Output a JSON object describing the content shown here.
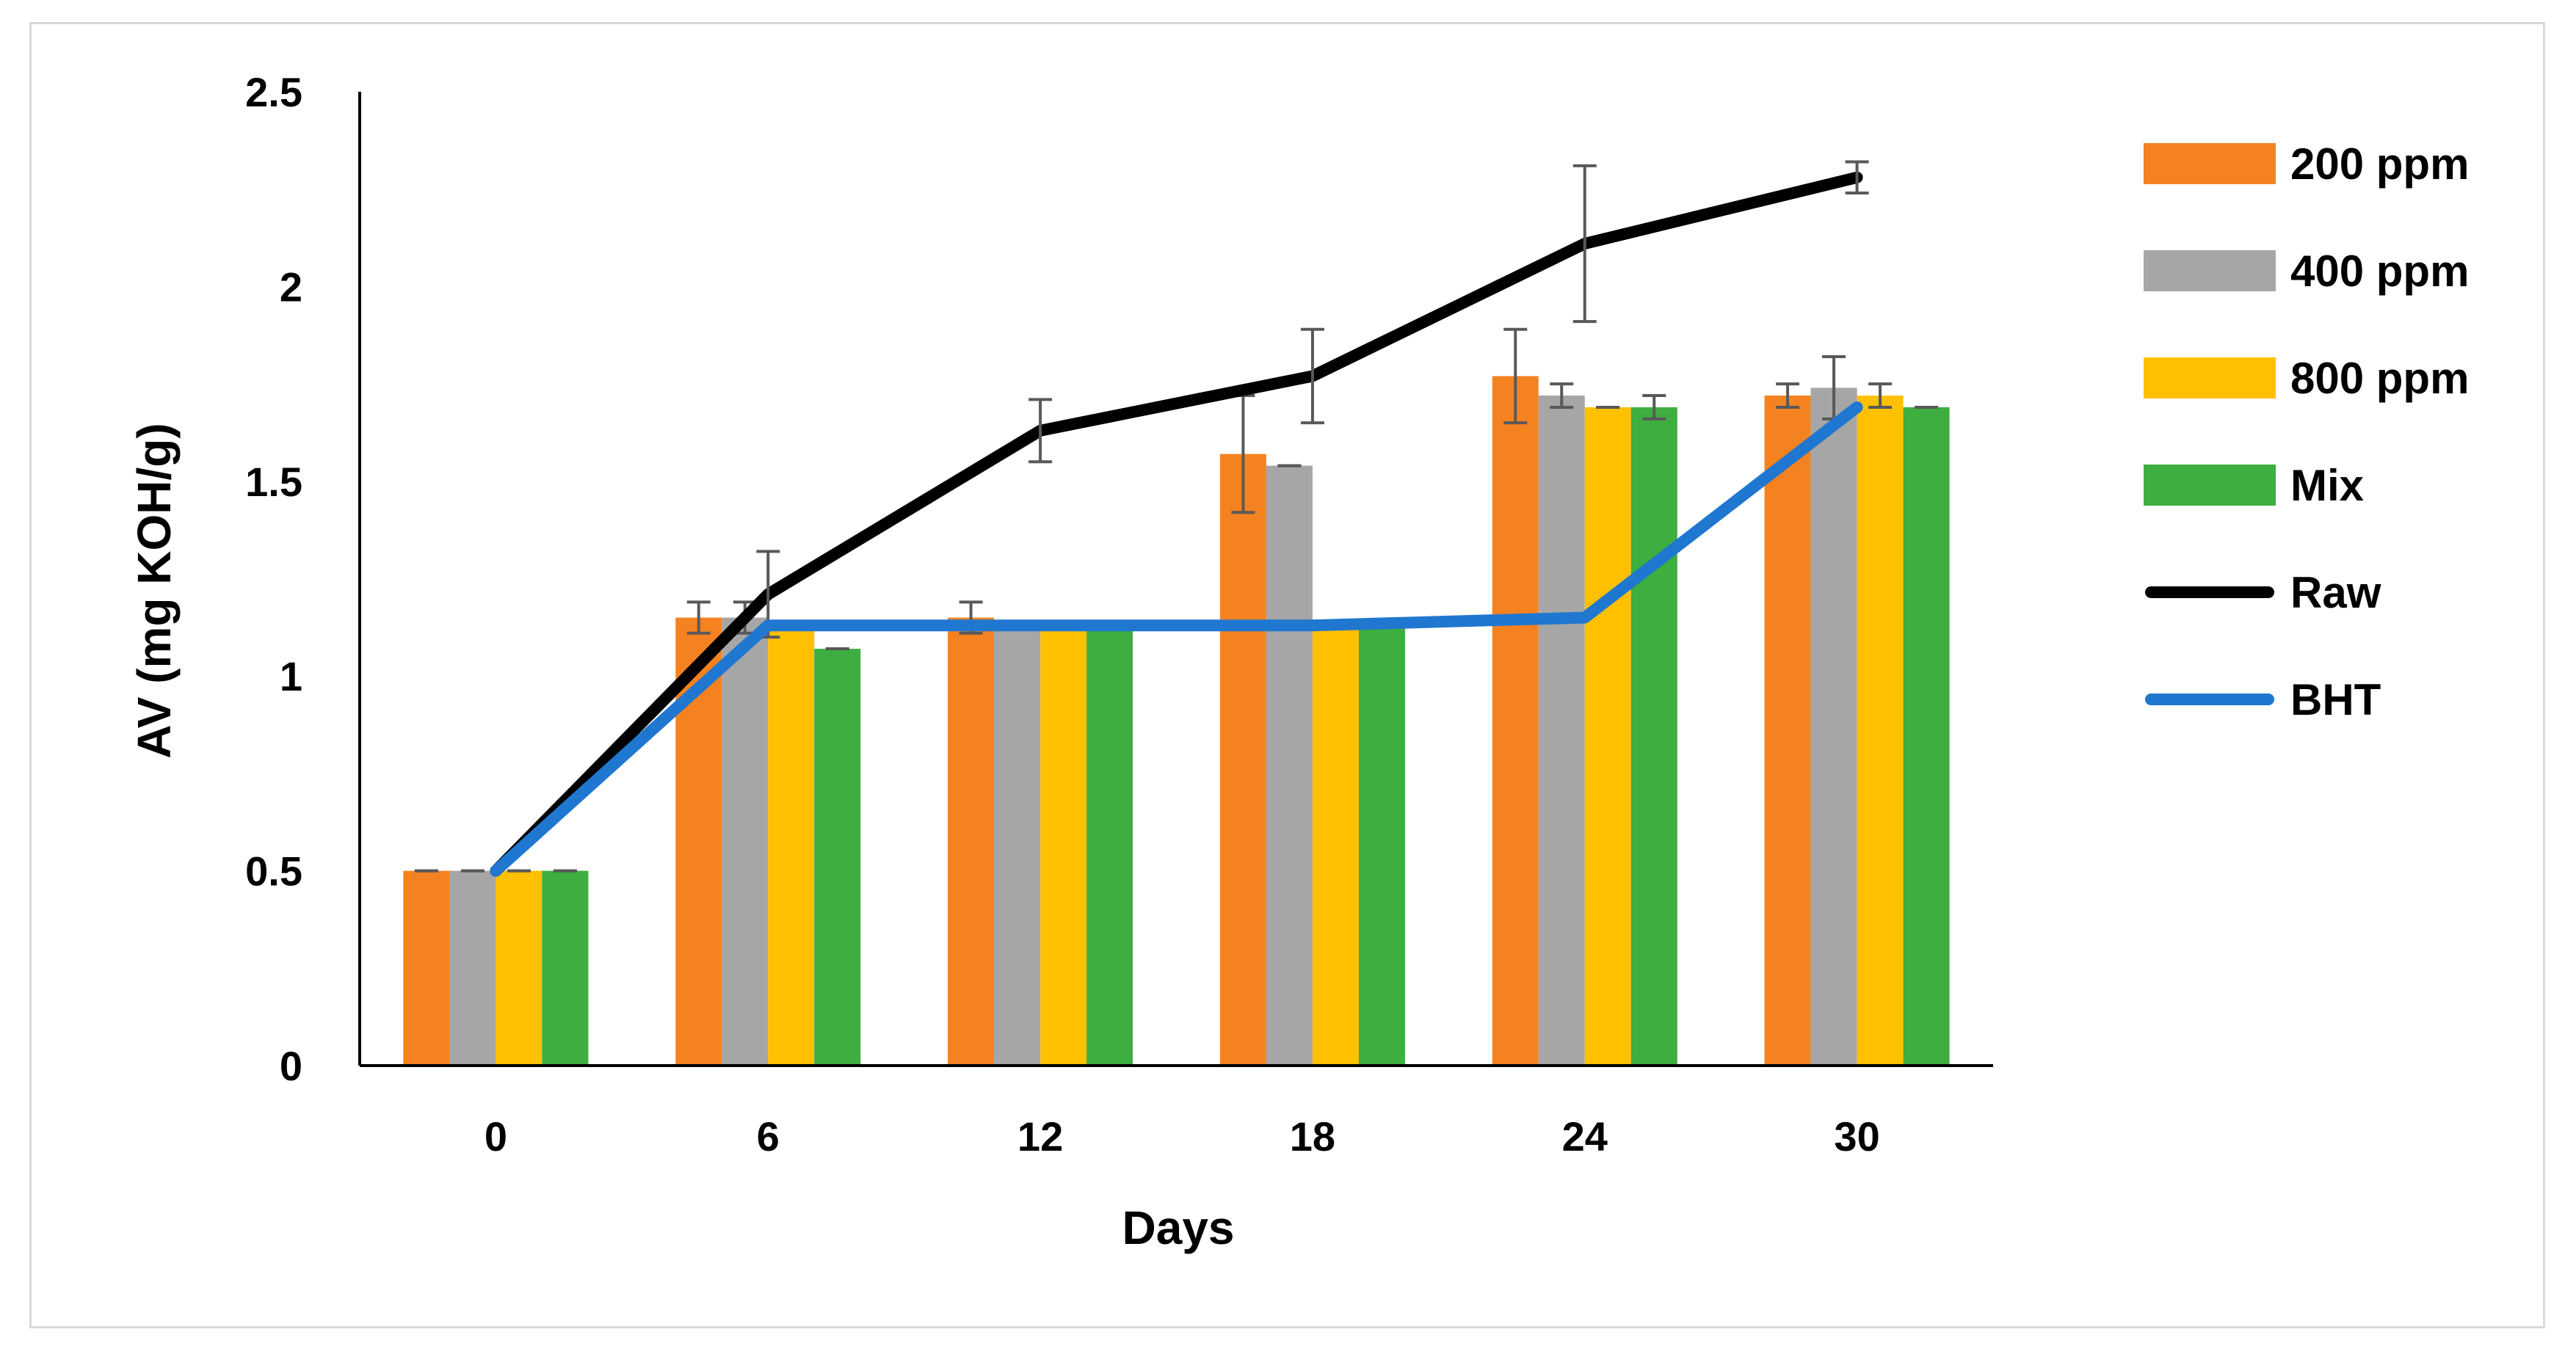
{
  "chart_data": {
    "type": "bar",
    "title": "",
    "xlabel": "Days",
    "ylabel": "AV (mg KOH/g)",
    "ylim": [
      0,
      2.5
    ],
    "yticks": [
      "0",
      "0.5",
      "1",
      "1.5",
      "2",
      "2.5"
    ],
    "categories": [
      "0",
      "6",
      "12",
      "18",
      "24",
      "30"
    ],
    "series": [
      {
        "name": "200 ppm",
        "kind": "bar",
        "color": "#F58220",
        "values": [
          0.5,
          1.15,
          1.15,
          1.57,
          1.77,
          1.72
        ],
        "errors": [
          0,
          0.04,
          0.04,
          0.15,
          0.12,
          0.03
        ]
      },
      {
        "name": "400 ppm",
        "kind": "bar",
        "color": "#A6A6A6",
        "values": [
          0.5,
          1.15,
          1.13,
          1.54,
          1.72,
          1.74
        ],
        "errors": [
          0,
          0.04,
          0,
          0,
          0.03,
          0.08
        ]
      },
      {
        "name": "800 ppm",
        "kind": "bar",
        "color": "#FFC000",
        "values": [
          0.5,
          1.13,
          1.13,
          1.13,
          1.69,
          1.72
        ],
        "errors": [
          0,
          0,
          0,
          0,
          0,
          0.03
        ]
      },
      {
        "name": "Mix",
        "kind": "bar",
        "color": "#3DAE3F",
        "values": [
          0.5,
          1.07,
          1.13,
          1.13,
          1.69,
          1.69
        ],
        "errors": [
          0,
          0,
          0,
          0,
          0.03,
          0
        ]
      },
      {
        "name": "Raw",
        "kind": "line",
        "color": "#000000",
        "values": [
          0.5,
          1.21,
          1.63,
          1.77,
          2.11,
          2.28
        ],
        "errors": [
          0,
          0.11,
          0.08,
          0.12,
          0.2,
          0.04
        ]
      },
      {
        "name": "BHT",
        "kind": "line",
        "color": "#1F77D0",
        "values": [
          0.5,
          1.13,
          1.13,
          1.13,
          1.15,
          1.69
        ],
        "errors": [
          0,
          0,
          0,
          0,
          0,
          0
        ]
      }
    ],
    "legend_position": "right"
  }
}
